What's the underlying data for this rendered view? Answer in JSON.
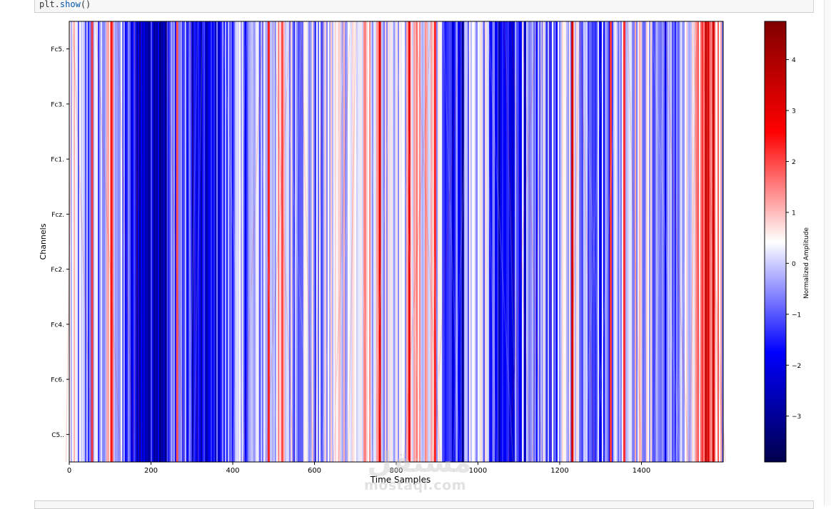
{
  "code": {
    "object": "plt.",
    "method": "show",
    "args": "()"
  },
  "watermark": {
    "arabic": "مستقل",
    "latin": "mostaqi.com"
  },
  "chart_data": {
    "type": "heatmap",
    "xlabel": "Time Samples",
    "ylabel": "Channels",
    "x_ticks": [
      0,
      200,
      400,
      600,
      800,
      1000,
      1200,
      1400
    ],
    "xlim": [
      0,
      1600
    ],
    "channels": [
      "Fc5.",
      "Fc3.",
      "Fc1.",
      "Fcz.",
      "Fc2.",
      "Fc4.",
      "Fc6.",
      "C5.."
    ],
    "colorbar": {
      "label": "Normalized Amplitude",
      "colormap": "seismic",
      "vmin": -3.9,
      "vmax": 4.75,
      "ticks": [
        4,
        3,
        2,
        1,
        0,
        -1,
        -2,
        -3
      ],
      "tick_labels": [
        "4",
        "3",
        "2",
        "1",
        "0",
        "−1",
        "−2",
        "−3"
      ]
    },
    "column_profile": [
      {
        "x": 0,
        "value": 0.3
      },
      {
        "x": 40,
        "value": -0.8
      },
      {
        "x": 80,
        "value": -0.3
      },
      {
        "x": 105,
        "value": 0.9
      },
      {
        "x": 120,
        "value": -0.4
      },
      {
        "x": 150,
        "value": -1.7
      },
      {
        "x": 180,
        "value": -2.4
      },
      {
        "x": 205,
        "value": -1.9
      },
      {
        "x": 225,
        "value": -2.4
      },
      {
        "x": 245,
        "value": -1.2
      },
      {
        "x": 265,
        "value": -0.5
      },
      {
        "x": 290,
        "value": -1.4
      },
      {
        "x": 320,
        "value": -2.3
      },
      {
        "x": 345,
        "value": -2.1
      },
      {
        "x": 370,
        "value": -1.3
      },
      {
        "x": 400,
        "value": -0.5
      },
      {
        "x": 430,
        "value": -0.7
      },
      {
        "x": 460,
        "value": -0.4
      },
      {
        "x": 490,
        "value": 0.2
      },
      {
        "x": 520,
        "value": 0.5
      },
      {
        "x": 550,
        "value": -0.3
      },
      {
        "x": 580,
        "value": 0.1
      },
      {
        "x": 610,
        "value": -0.6
      },
      {
        "x": 640,
        "value": 0.2
      },
      {
        "x": 670,
        "value": 0.5
      },
      {
        "x": 700,
        "value": 0.3
      },
      {
        "x": 730,
        "value": 0.6
      },
      {
        "x": 760,
        "value": 0.2
      },
      {
        "x": 790,
        "value": -0.5
      },
      {
        "x": 820,
        "value": 0.3
      },
      {
        "x": 850,
        "value": 0.6
      },
      {
        "x": 880,
        "value": 0.5
      },
      {
        "x": 910,
        "value": -0.3
      },
      {
        "x": 940,
        "value": -1.5
      },
      {
        "x": 965,
        "value": -0.4
      },
      {
        "x": 990,
        "value": 0.2
      },
      {
        "x": 1010,
        "value": 0.1
      },
      {
        "x": 1040,
        "value": -1.6
      },
      {
        "x": 1070,
        "value": -1.9
      },
      {
        "x": 1100,
        "value": -0.7
      },
      {
        "x": 1130,
        "value": -1.3
      },
      {
        "x": 1160,
        "value": -0.3
      },
      {
        "x": 1190,
        "value": -0.8
      },
      {
        "x": 1220,
        "value": 0.2
      },
      {
        "x": 1250,
        "value": -0.2
      },
      {
        "x": 1280,
        "value": -0.4
      },
      {
        "x": 1310,
        "value": -0.9
      },
      {
        "x": 1340,
        "value": -0.3
      },
      {
        "x": 1370,
        "value": 0.4
      },
      {
        "x": 1400,
        "value": 0.1
      },
      {
        "x": 1430,
        "value": -0.4
      },
      {
        "x": 1460,
        "value": -1.0
      },
      {
        "x": 1490,
        "value": -0.5
      },
      {
        "x": 1510,
        "value": -0.2
      },
      {
        "x": 1530,
        "value": 0.2
      },
      {
        "x": 1545,
        "value": 1.5
      },
      {
        "x": 1560,
        "value": 2.6
      },
      {
        "x": 1575,
        "value": 2.1
      },
      {
        "x": 1585,
        "value": 1.4
      },
      {
        "x": 1600,
        "value": -0.6
      }
    ],
    "vertical_stripes": [
      {
        "x": 56,
        "value": 2.0
      },
      {
        "x": 103,
        "value": 2.4
      },
      {
        "x": 264,
        "value": 1.9
      },
      {
        "x": 488,
        "value": 2.3
      },
      {
        "x": 521,
        "value": 2.0
      },
      {
        "x": 760,
        "value": 3.0
      },
      {
        "x": 832,
        "value": 2.8
      },
      {
        "x": 895,
        "value": 2.3
      },
      {
        "x": 1231,
        "value": 3.2
      },
      {
        "x": 1325,
        "value": 2.1
      },
      {
        "x": 1358,
        "value": 2.2
      },
      {
        "x": 1558,
        "value": 3.6
      },
      {
        "x": 1576,
        "value": 3.3
      },
      {
        "x": 195,
        "value": -3.0
      },
      {
        "x": 236,
        "value": -3.1
      },
      {
        "x": 963,
        "value": -3.0
      },
      {
        "x": 1052,
        "value": -2.7
      },
      {
        "x": 1115,
        "value": -2.4
      },
      {
        "x": 1300,
        "value": -2.0
      }
    ]
  }
}
